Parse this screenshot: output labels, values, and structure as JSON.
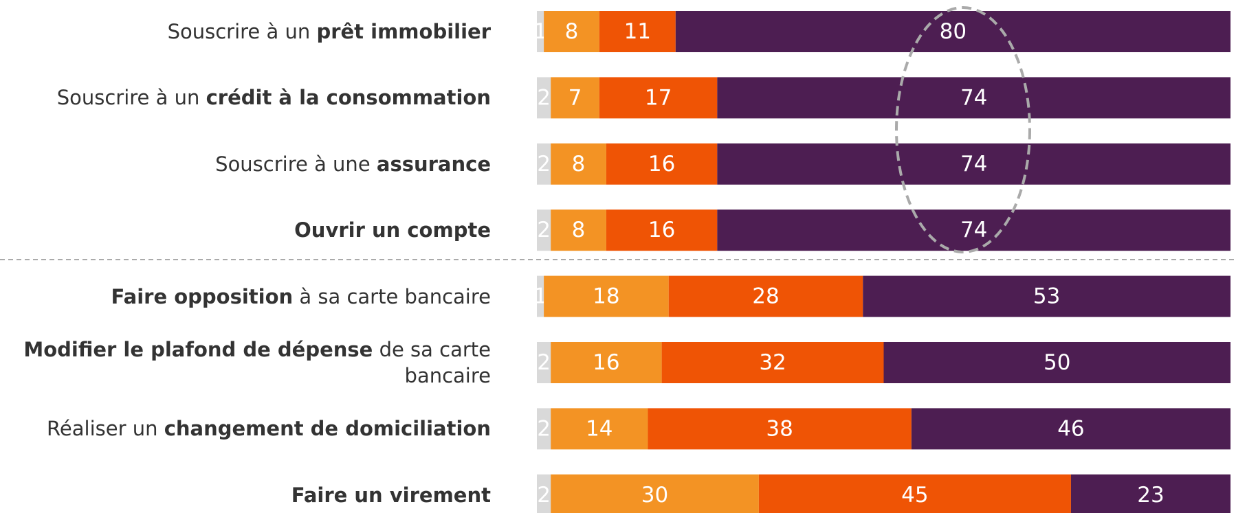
{
  "chart_data": {
    "type": "stacked-bar-horizontal",
    "categories": [
      [
        {
          "text": "Souscrire à un "
        },
        {
          "text": "prêt immobilier",
          "bold": true
        }
      ],
      [
        {
          "text": "Souscrire à un "
        },
        {
          "text": "crédit à la consommation",
          "bold": true
        }
      ],
      [
        {
          "text": "Souscrire à une "
        },
        {
          "text": "assurance",
          "bold": true
        }
      ],
      [
        {
          "text": "Ouvrir un compte",
          "bold": true
        }
      ],
      [
        {
          "text": "Faire opposition",
          "bold": true
        },
        {
          "text": " à sa carte bancaire"
        }
      ],
      [
        {
          "text": "Modifier le plafond de dépense",
          "bold": true
        },
        {
          "text": " de sa carte bancaire"
        }
      ],
      [
        {
          "text": "Réaliser un "
        },
        {
          "text": "changement de domiciliation",
          "bold": true
        }
      ],
      [
        {
          "text": "Faire un virement",
          "bold": true
        }
      ]
    ],
    "series": [
      {
        "color": "#d9d9d9",
        "values": [
          1,
          2,
          2,
          2,
          1,
          2,
          2,
          2
        ]
      },
      {
        "color": "#f39324",
        "values": [
          8,
          7,
          8,
          8,
          18,
          16,
          14,
          30
        ]
      },
      {
        "color": "#ef5405",
        "values": [
          11,
          17,
          16,
          16,
          28,
          32,
          38,
          45
        ]
      },
      {
        "color": "#4d1e52",
        "values": [
          80,
          74,
          74,
          74,
          53,
          50,
          46,
          23
        ]
      }
    ],
    "xlim": [
      0,
      100
    ]
  }
}
